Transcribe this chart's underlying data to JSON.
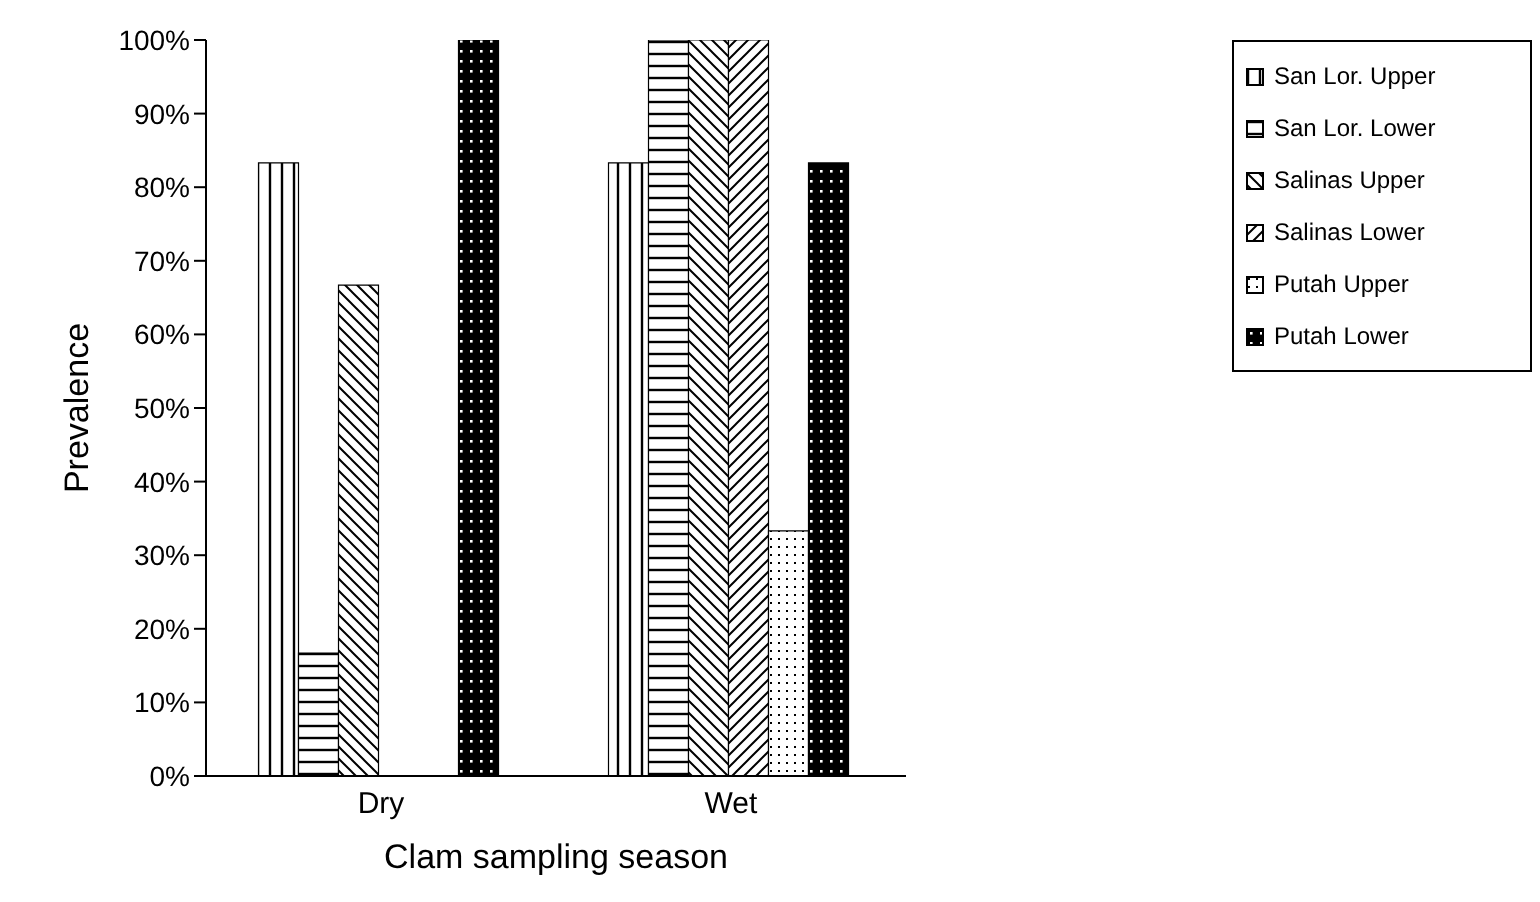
{
  "chart_data": {
    "type": "bar",
    "xlabel": "Clam sampling season",
    "ylabel": "Prevalence",
    "categories": [
      "Dry",
      "Wet"
    ],
    "series": [
      {
        "name": "San Lor. Upper",
        "color": "#000000",
        "values": [
          83.3,
          83.3
        ]
      },
      {
        "name": "San Lor. Lower",
        "color": "#000000",
        "values": [
          16.7,
          100
        ]
      },
      {
        "name": "Salinas Upper",
        "color": "#000000",
        "values": [
          66.7,
          100
        ]
      },
      {
        "name": "Salinas Lower",
        "color": "#000000",
        "values": [
          0,
          100
        ]
      },
      {
        "name": "Putah Upper",
        "color": "#000000",
        "values": [
          0,
          33.3
        ]
      },
      {
        "name": "Putah Lower",
        "color": "#000000",
        "values": [
          100,
          83.3
        ]
      }
    ],
    "ylim": [
      0,
      100
    ],
    "yticks": [
      {
        "value": 0,
        "label": "0%"
      },
      {
        "value": 10,
        "label": "10%"
      },
      {
        "value": 20,
        "label": "20%"
      },
      {
        "value": 30,
        "label": "30%"
      },
      {
        "value": 40,
        "label": "40%"
      },
      {
        "value": 50,
        "label": "50%"
      },
      {
        "value": 60,
        "label": "60%"
      },
      {
        "value": 70,
        "label": "70%"
      },
      {
        "value": 80,
        "label": "80%"
      },
      {
        "value": 90,
        "label": "90%"
      },
      {
        "value": 100,
        "label": "100%"
      }
    ],
    "grid": false,
    "legend": "top right"
  }
}
